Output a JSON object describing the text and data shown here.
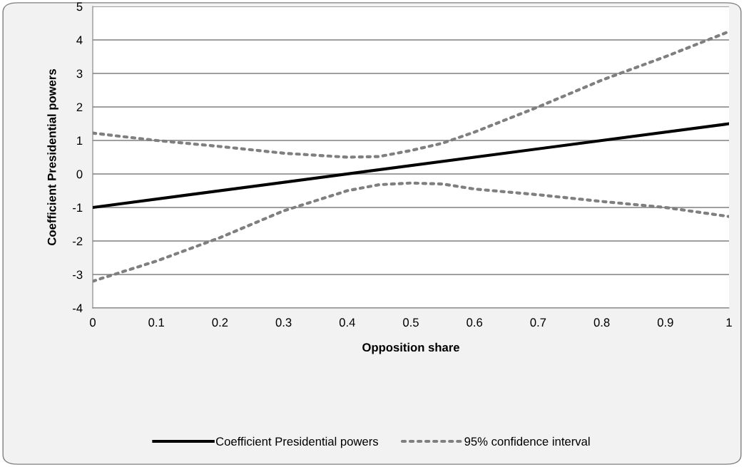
{
  "chart_data": {
    "type": "line",
    "xlabel": "Opposition share",
    "ylabel": "Coefficient Presidential powers",
    "xlim": [
      0,
      1
    ],
    "xticks": [
      0,
      {
        "value": 0.1,
        "label": "0.1"
      },
      {
        "value": 0.2,
        "label": "0.2"
      },
      {
        "value": 0.3,
        "label": "0.3"
      },
      {
        "value": 0.4,
        "label": "0.4"
      },
      {
        "value": 0.5,
        "label": "0.5"
      },
      {
        "value": 0.6,
        "label": "0.6"
      },
      {
        "value": 0.7,
        "label": "0.7"
      },
      {
        "value": 0.8,
        "label": "0.8"
      },
      {
        "value": 0.9,
        "label": "0.9"
      },
      1
    ],
    "ylim": [
      -4,
      5
    ],
    "yticks": [
      -4,
      -3,
      -2,
      -1,
      0,
      1,
      2,
      3,
      4,
      5
    ],
    "grid": "y",
    "legend": "bottom",
    "marker": "none",
    "series": [
      {
        "name": "Coefficient Presidential powers",
        "color": "#000000",
        "line_style": "solid",
        "x": [
          0,
          1
        ],
        "values": [
          -1,
          1.5
        ]
      },
      {
        "name": "95% confidence interval",
        "color": "#7f7f7f",
        "line_style": "dotted",
        "x": [
          0,
          0.1,
          0.2,
          0.3,
          0.4,
          0.45,
          0.5,
          0.55,
          0.6,
          0.7,
          0.8,
          0.9,
          1
        ],
        "values": [
          1.22,
          1.0,
          0.82,
          0.62,
          0.5,
          0.52,
          0.7,
          0.92,
          1.25,
          2.0,
          2.8,
          3.5,
          4.25
        ]
      },
      {
        "color": "#7f7f7f",
        "line_style": "dotted",
        "x": [
          0,
          0.1,
          0.2,
          0.3,
          0.4,
          0.45,
          0.5,
          0.55,
          0.6,
          0.7,
          0.8,
          0.9,
          1
        ],
        "values": [
          -3.2,
          -2.6,
          -1.9,
          -1.1,
          -0.5,
          -0.32,
          -0.27,
          -0.3,
          -0.45,
          -0.62,
          -0.82,
          -1.0,
          -1.27
        ]
      }
    ]
  }
}
